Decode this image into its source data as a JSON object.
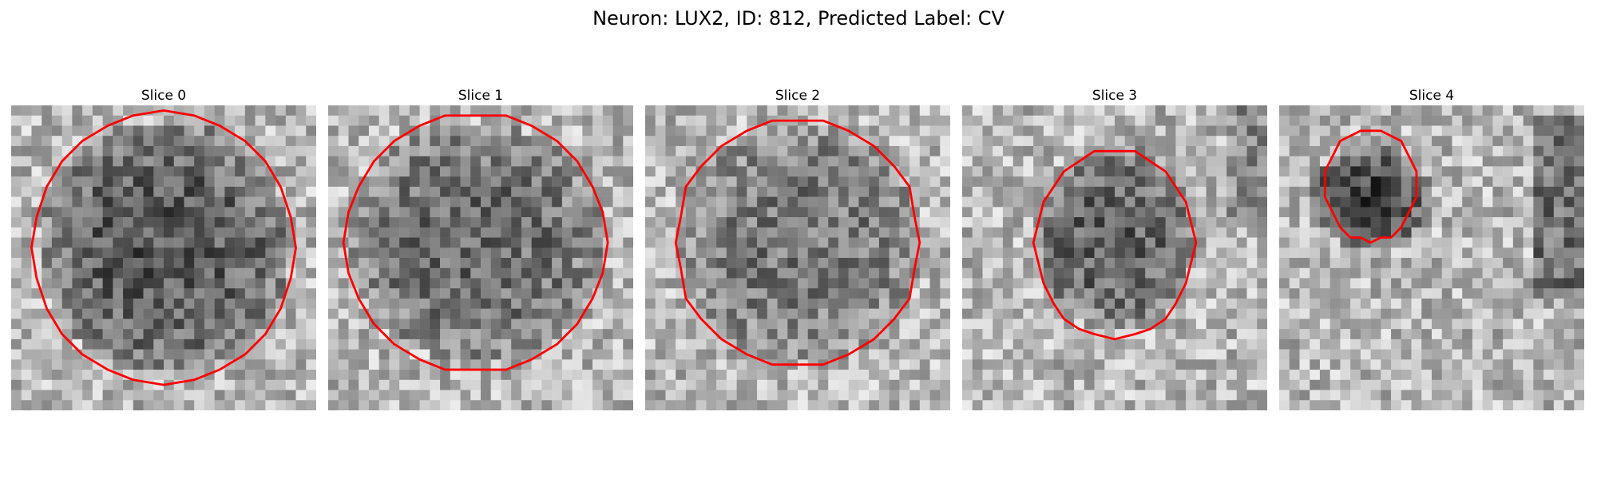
{
  "figure": {
    "title": "Neuron: LUX2, ID: 812, Predicted Label: CV"
  },
  "colors": {
    "background": "#ffffff",
    "contour": "#ff0000",
    "colormap": "gray"
  },
  "panels": [
    {
      "title": "Slice 0",
      "image_seed": 11,
      "dark_blob": "large-center-dark-upper",
      "contour_extent": "large"
    },
    {
      "title": "Slice 1",
      "image_seed": 23,
      "dark_blob": "large-center",
      "contour_extent": "large"
    },
    {
      "title": "Slice 2",
      "image_seed": 37,
      "dark_blob": "large-noisy",
      "contour_extent": "large"
    },
    {
      "title": "Slice 3",
      "image_seed": 41,
      "dark_blob": "medium-lower-center",
      "contour_extent": "medium"
    },
    {
      "title": "Slice 4",
      "image_seed": 53,
      "dark_blob": "small-upper-left",
      "contour_extent": "small"
    }
  ]
}
